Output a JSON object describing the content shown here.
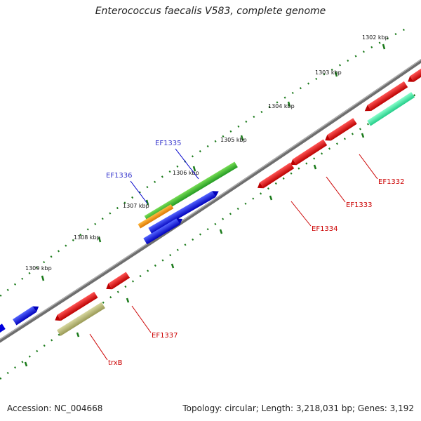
{
  "title": "Enterococcus faecalis V583, complete genome",
  "accession": "Accession: NC_004668",
  "topology": "Topology: circular; Length: 3,218,031 bp; Genes: 3,192",
  "ticks": [
    "1302 kbp",
    "1303 kbp",
    "1304 kbp",
    "1305 kbp",
    "1306 kbp",
    "1307 kbp",
    "1308 kbp",
    "1309 kbp"
  ],
  "genes_outer": [
    {
      "label": "EF1335",
      "color": "#3333cc"
    },
    {
      "label": "EF1336",
      "color": "#3333cc"
    }
  ],
  "genes_inner": [
    {
      "label": "EF1332",
      "color": "#cc0000"
    },
    {
      "label": "EF1333",
      "color": "#cc0000"
    },
    {
      "label": "EF1334",
      "color": "#cc0000"
    },
    {
      "label": "EF1337",
      "color": "#cc0000"
    },
    {
      "label": "trxB",
      "color": "#cc0000"
    }
  ],
  "colors": {
    "backbone": "#808080",
    "forward_cds": "#0000ee",
    "reverse_cds": "#ee0000",
    "gc_ticks": "#1a7a1a",
    "rna_green": "#33bb33",
    "rna_orange": "#ff8800",
    "cyan": "#33eeaa",
    "khaki": "#bbbb77"
  }
}
